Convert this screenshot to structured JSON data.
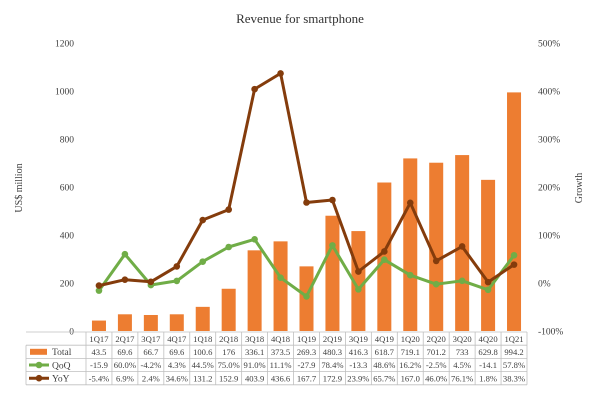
{
  "chart_data": {
    "type": "bar+line",
    "title": "Revenue for smartphone",
    "ylabel": "US$ million",
    "y2label": "Growth",
    "ylim": [
      0,
      1200
    ],
    "yticks": [
      0,
      200,
      400,
      600,
      800,
      1000,
      1200
    ],
    "y2lim": [
      -100,
      500
    ],
    "y2ticks": [
      "-100%",
      "0%",
      "100%",
      "200%",
      "300%",
      "400%",
      "500%"
    ],
    "y2tick_values": [
      -100,
      0,
      100,
      200,
      300,
      400,
      500
    ],
    "categories": [
      "1Q17",
      "2Q17",
      "3Q17",
      "4Q17",
      "1Q18",
      "2Q18",
      "3Q18",
      "4Q18",
      "1Q19",
      "2Q19",
      "3Q19",
      "4Q19",
      "1Q20",
      "2Q20",
      "3Q20",
      "4Q20",
      "1Q21"
    ],
    "legend_position": "data-table",
    "series": [
      {
        "name": "Total",
        "kind": "bar",
        "axis": "left",
        "color": "#ED7D31",
        "values": [
          43.5,
          69.6,
          66.7,
          69.6,
          100.6,
          176,
          336.1,
          373.5,
          269.3,
          480.3,
          416.3,
          618.7,
          719.1,
          701.2,
          733,
          629.8,
          994.2
        ],
        "labels": [
          "43.5",
          "69.6",
          "66.7",
          "69.6",
          "100.6",
          "176",
          "336.1",
          "373.5",
          "269.3",
          "480.3",
          "416.3",
          "618.7",
          "719.1",
          "701.2",
          "733",
          "629.8",
          "994.2"
        ]
      },
      {
        "name": "QoQ",
        "kind": "line",
        "axis": "right",
        "color": "#70AD47",
        "values": [
          -15.9,
          60.0,
          -4.2,
          4.3,
          44.5,
          75.0,
          91.0,
          11.1,
          -27.9,
          78.4,
          -13.3,
          48.6,
          16.2,
          -2.5,
          4.5,
          -14.1,
          57.8
        ],
        "labels": [
          "-15.9",
          "60.0%",
          "-4.2%",
          "4.3%",
          "44.5%",
          "75.0%",
          "91.0%",
          "11.1%",
          "-27.9",
          "78.4%",
          "-13.3",
          "48.6%",
          "16.2%",
          "-2.5%",
          "4.5%",
          "-14.1",
          "57.8%"
        ]
      },
      {
        "name": "YoY",
        "kind": "line",
        "axis": "right",
        "color": "#843C0C",
        "values": [
          -5.4,
          6.9,
          2.4,
          34.6,
          131.2,
          152.9,
          403.9,
          436.6,
          167.7,
          172.9,
          23.9,
          65.7,
          167.0,
          46.0,
          76.1,
          1.8,
          38.3
        ],
        "labels": [
          "-5.4%",
          "6.9%",
          "2.4%",
          "34.6%",
          "131.2",
          "152.9",
          "403.9",
          "436.6",
          "167.7",
          "172.9",
          "23.9%",
          "65.7%",
          "167.0",
          "46.0%",
          "76.1%",
          "1.8%",
          "38.3%"
        ]
      }
    ],
    "grid": false
  }
}
